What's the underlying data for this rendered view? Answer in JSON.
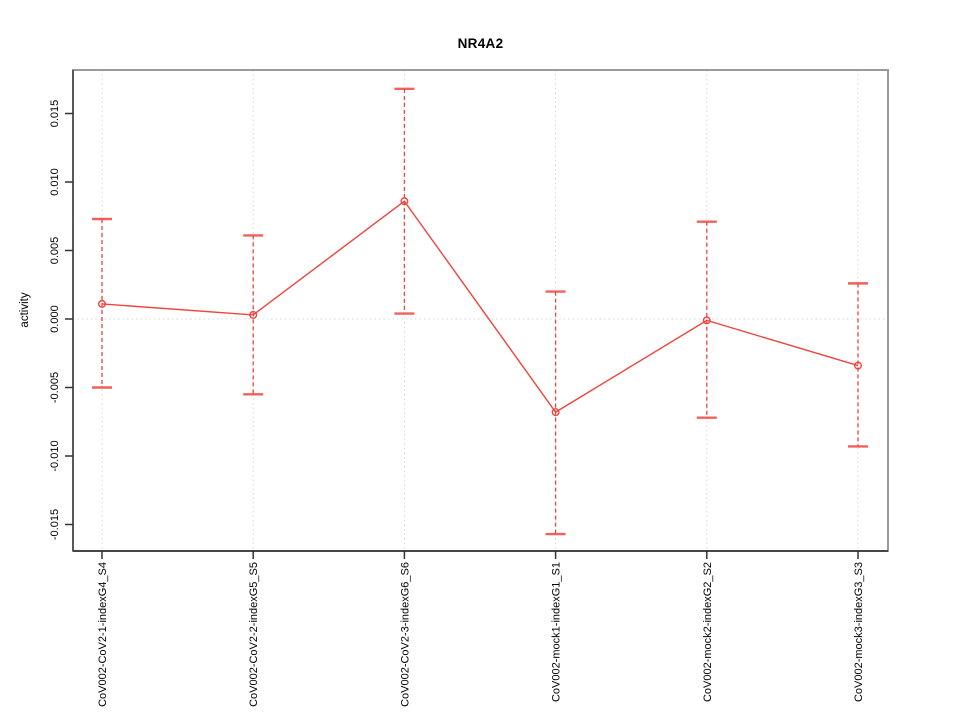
{
  "chart_data": {
    "type": "line",
    "title": "NR4A2",
    "xlabel": "",
    "ylabel": "activity",
    "categories": [
      "CoV002-CoV2-1-indexG4_S4",
      "CoV002-CoV2-2-indexG5_S5",
      "CoV002-CoV2-3-indexG6_S6",
      "CoV002-mock1-indexG1_S1",
      "CoV002-mock2-indexG2_S2",
      "CoV002-mock3-indexG3_S3"
    ],
    "series": [
      {
        "name": "activity",
        "values": [
          0.0011,
          0.0003,
          0.0086,
          -0.0068,
          -0.0001,
          -0.0034
        ],
        "upper": [
          0.0073,
          0.0061,
          0.0168,
          0.002,
          0.0071,
          0.0026
        ],
        "lower": [
          -0.005,
          -0.0055,
          0.0004,
          -0.0157,
          -0.0072,
          -0.0093
        ]
      }
    ],
    "ylim": [
      -0.0169,
      0.0182
    ],
    "yticks": [
      -0.015,
      -0.01,
      -0.005,
      0.0,
      0.005,
      0.01,
      0.015
    ],
    "ytick_labels": [
      "-0.015",
      "-0.010",
      "-0.005",
      "0.000",
      "0.005",
      "0.010",
      "0.015"
    ],
    "grid": {
      "vertical_at_categories": true,
      "horizontal_at_zero": true,
      "style": "dotted"
    },
    "legend": "none",
    "marker": "open-circle",
    "error_bar_line_style": "dashed",
    "colors": {
      "series": "#ef453f",
      "grid": "#d8d8d8",
      "box_border": "#9a9a9a",
      "axis_line": "#4a4a4a",
      "tick": "#333333",
      "text": "#000000",
      "background": "#ffffff"
    }
  }
}
